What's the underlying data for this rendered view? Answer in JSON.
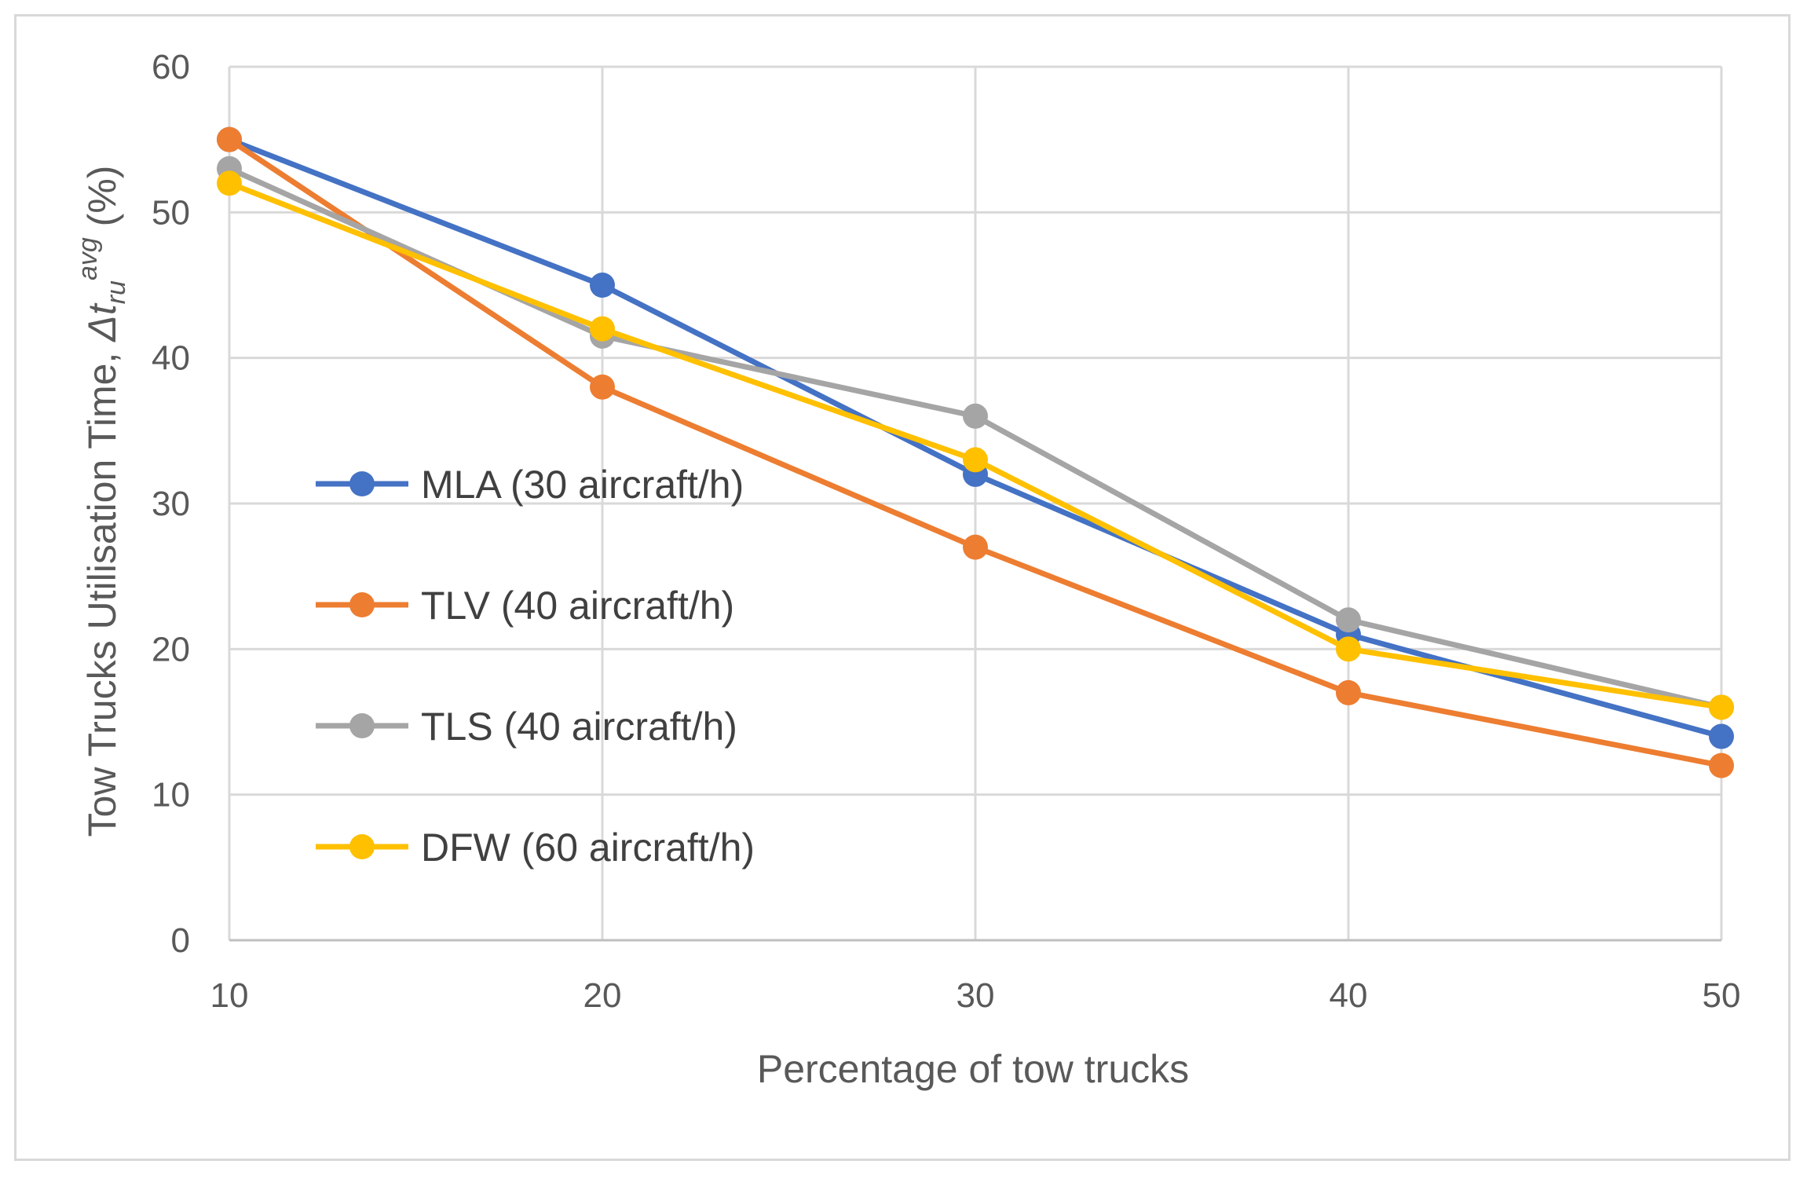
{
  "chart_data": {
    "type": "line",
    "title": "",
    "xlabel": "Percentage of tow trucks",
    "ylabel": {
      "prefix": "Tow Trucks Utilisation Time, ",
      "symbol": "Δt",
      "subscript": "ru",
      "superscript": "avg",
      "suffix": " (%)"
    },
    "x": [
      10,
      20,
      30,
      40,
      50
    ],
    "xlim": [
      10,
      50
    ],
    "ylim": [
      0,
      60
    ],
    "xticks": [
      "10",
      "20",
      "30",
      "40",
      "50"
    ],
    "yticks": [
      "0",
      "10",
      "20",
      "30",
      "40",
      "50",
      "60"
    ],
    "grid": true,
    "legend_position": "center-left",
    "series": [
      {
        "name": "MLA (30 aircraft/h)",
        "color": "#4472C4",
        "values": [
          55,
          45,
          32,
          21,
          14
        ]
      },
      {
        "name": "TLV (40 aircraft/h)",
        "color": "#ED7D31",
        "values": [
          55,
          38,
          27,
          17,
          12
        ]
      },
      {
        "name": "TLS (40 aircraft/h)",
        "color": "#A5A5A5",
        "values": [
          53,
          41.5,
          36,
          22,
          16
        ]
      },
      {
        "name": "DFW (60 aircraft/h)",
        "color": "#FFC000",
        "values": [
          52,
          42,
          33,
          20,
          16
        ]
      }
    ]
  }
}
